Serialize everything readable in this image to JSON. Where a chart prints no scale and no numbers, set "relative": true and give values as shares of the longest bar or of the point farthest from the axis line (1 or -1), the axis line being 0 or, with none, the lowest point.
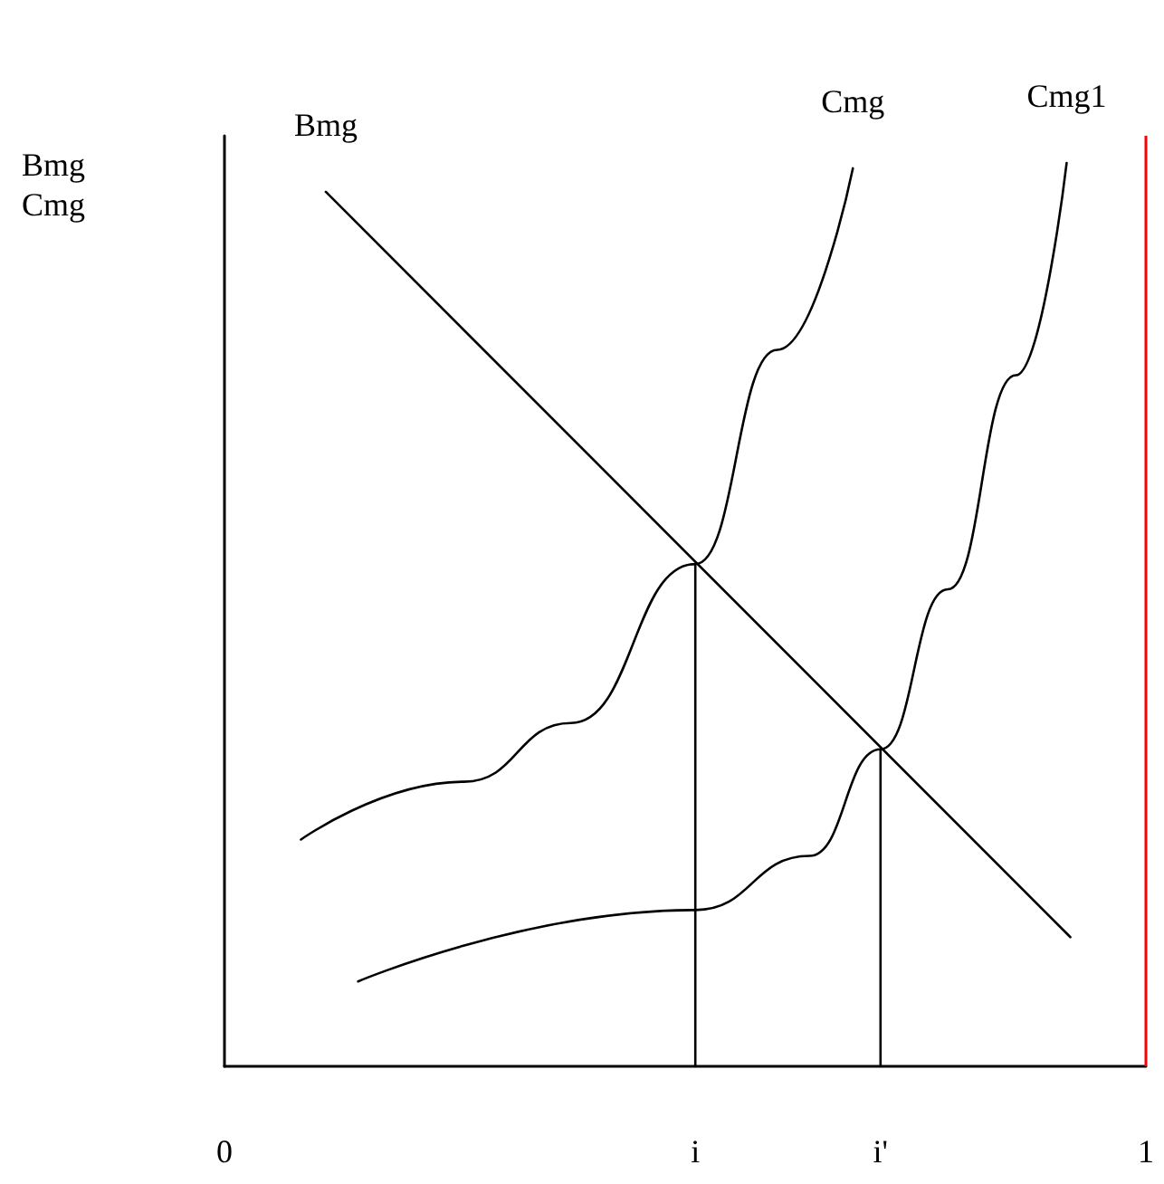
{
  "chart_data": {
    "type": "line",
    "relative": true,
    "ylabel": "Bmg\nCmg",
    "xlim": [
      0,
      1
    ],
    "xticks": [
      0,
      {
        "value": 0.511,
        "label": "i"
      },
      {
        "value": 0.712,
        "label": "i'"
      },
      1
    ],
    "grid": false,
    "legend": false,
    "marker": "none",
    "line_style": "solid",
    "series": [
      {
        "name": "Bmg",
        "color": "#000000",
        "x": [
          0.11,
          0.918
        ],
        "values": [
          0.968,
          0.143
        ]
      },
      {
        "name": "Cmg",
        "color": "#000000",
        "x": [
          0.083,
          0.26,
          0.376,
          0.511,
          0.6,
          0.682
        ],
        "values": [
          0.251,
          0.315,
          0.38,
          0.556,
          0.793,
          0.994
        ]
      },
      {
        "name": "Cmg1",
        "color": "#000000",
        "x": [
          0.145,
          0.511,
          0.635,
          0.712,
          0.785,
          0.859,
          0.914
        ],
        "values": [
          0.094,
          0.173,
          0.233,
          0.351,
          0.528,
          0.765,
          1
        ]
      },
      {
        "color": "#000000",
        "x": [
          0.511,
          0.511
        ],
        "values": [
          0,
          0.556
        ]
      },
      {
        "color": "#000000",
        "x": [
          0.712,
          0.712
        ],
        "values": [
          0,
          0.351
        ]
      }
    ],
    "ref_lines": [
      {
        "axis": "x",
        "value": 1,
        "color": "#ff0000"
      }
    ]
  }
}
